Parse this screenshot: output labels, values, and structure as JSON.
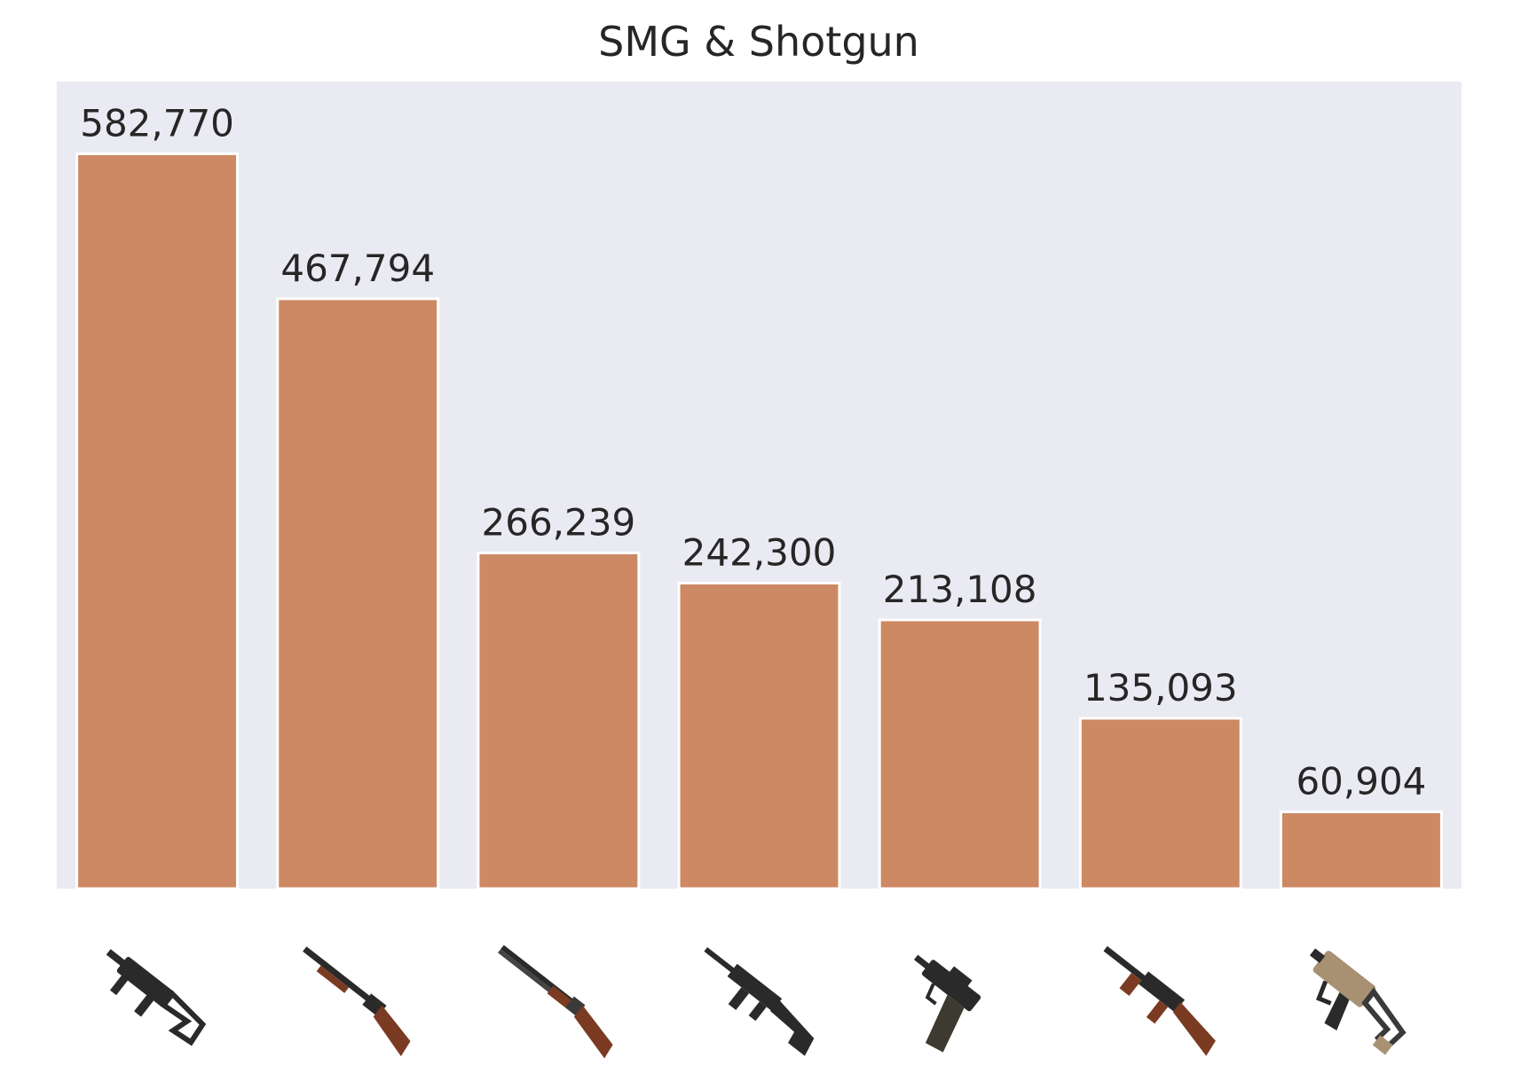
{
  "chart_data": {
    "type": "bar",
    "title": "SMG & Shotgun",
    "xlabel": "",
    "ylabel": "",
    "ylim": [
      0,
      640000
    ],
    "grid": false,
    "categories": [
      "ump45-icon",
      "s1897-icon",
      "s686-icon",
      "s12k-icon",
      "micro-uzi-icon",
      "tommy-gun-icon",
      "vector-icon"
    ],
    "values": [
      582770,
      467794,
      266239,
      242300,
      213108,
      135093,
      60904
    ],
    "value_labels": [
      "582,770",
      "467,794",
      "266,239",
      "242,300",
      "213,108",
      "135,093",
      "60,904"
    ],
    "bar_color": "#cd8963",
    "plot_background": "#eaeaf2"
  }
}
